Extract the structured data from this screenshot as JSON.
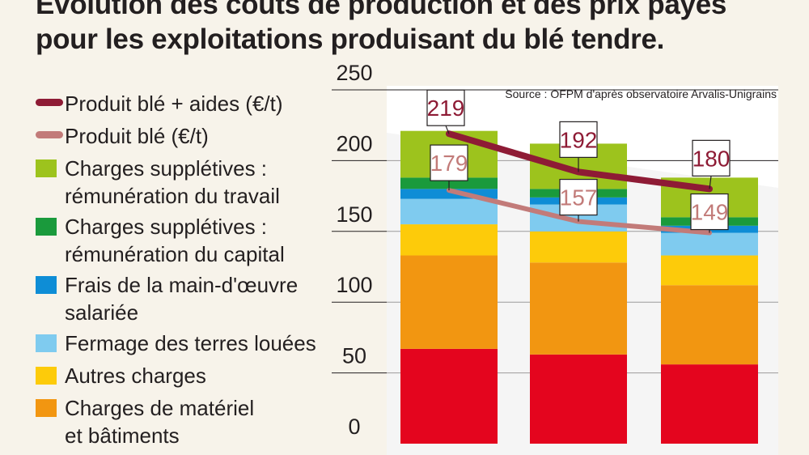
{
  "title_lines": [
    "Évolution des coûts de production et des prix payés",
    "pour les exploitations produisant du blé tendre."
  ],
  "source": "Source : OFPM d'après observatoire Arvalis-Unigrains",
  "legend": [
    {
      "kind": "line",
      "color": "#8e1b35",
      "lines": [
        "Produit blé + aides (€/t)"
      ]
    },
    {
      "kind": "line",
      "color": "#c27b79",
      "lines": [
        "Produit blé (€/t)"
      ]
    },
    {
      "kind": "box",
      "color": "#9dc31d",
      "lines": [
        "Charges supplétives :",
        "rémunération du travail"
      ]
    },
    {
      "kind": "box",
      "color": "#1a9a3c",
      "lines": [
        "Charges supplétives :",
        "rémunération du capital"
      ]
    },
    {
      "kind": "box",
      "color": "#0e8dd6",
      "lines": [
        "Frais de la main-d'œuvre",
        "salariée"
      ]
    },
    {
      "kind": "box",
      "color": "#7fcbef",
      "lines": [
        "Fermage des terres louées"
      ]
    },
    {
      "kind": "box",
      "color": "#fdcb0a",
      "lines": [
        "Autres charges"
      ]
    },
    {
      "kind": "box",
      "color": "#f29611",
      "lines": [
        "Charges de matériel",
        "et bâtiments"
      ]
    }
  ],
  "chart_data": {
    "type": "bar",
    "stacked": true,
    "ylim": [
      0,
      250
    ],
    "yticks": [
      0,
      50,
      100,
      150,
      200,
      250
    ],
    "grid": true,
    "series": [
      {
        "color": "#e4051e",
        "values": [
          67,
          63,
          56
        ]
      },
      {
        "name": "Charges de matériel et bâtiments",
        "color": "#f29611",
        "values": [
          66,
          65,
          56
        ]
      },
      {
        "name": "Autres charges",
        "color": "#fdcb0a",
        "values": [
          22,
          22,
          21
        ]
      },
      {
        "name": "Fermage des terres louées",
        "color": "#7fcbef",
        "values": [
          18,
          19,
          16
        ]
      },
      {
        "name": "Frais de la main-d'œuvre salariée",
        "color": "#0e8dd6",
        "values": [
          7,
          5,
          5
        ]
      },
      {
        "name": "Charges supplétives : rémunération du capital",
        "color": "#1a9a3c",
        "values": [
          8,
          6,
          6
        ]
      },
      {
        "name": "Charges supplétives : rémunération du travail",
        "color": "#9dc31d",
        "values": [
          33,
          32,
          28
        ]
      }
    ],
    "lines": [
      {
        "name": "Produit blé + aides (€/t)",
        "color": "#8e1b35",
        "values": [
          219,
          192,
          180
        ],
        "labels": [
          "219",
          "192",
          "180"
        ]
      },
      {
        "name": "Produit blé (€/t)",
        "color": "#c27b79",
        "values": [
          179,
          157,
          149
        ],
        "labels": [
          "179",
          "157",
          "149"
        ]
      }
    ]
  }
}
